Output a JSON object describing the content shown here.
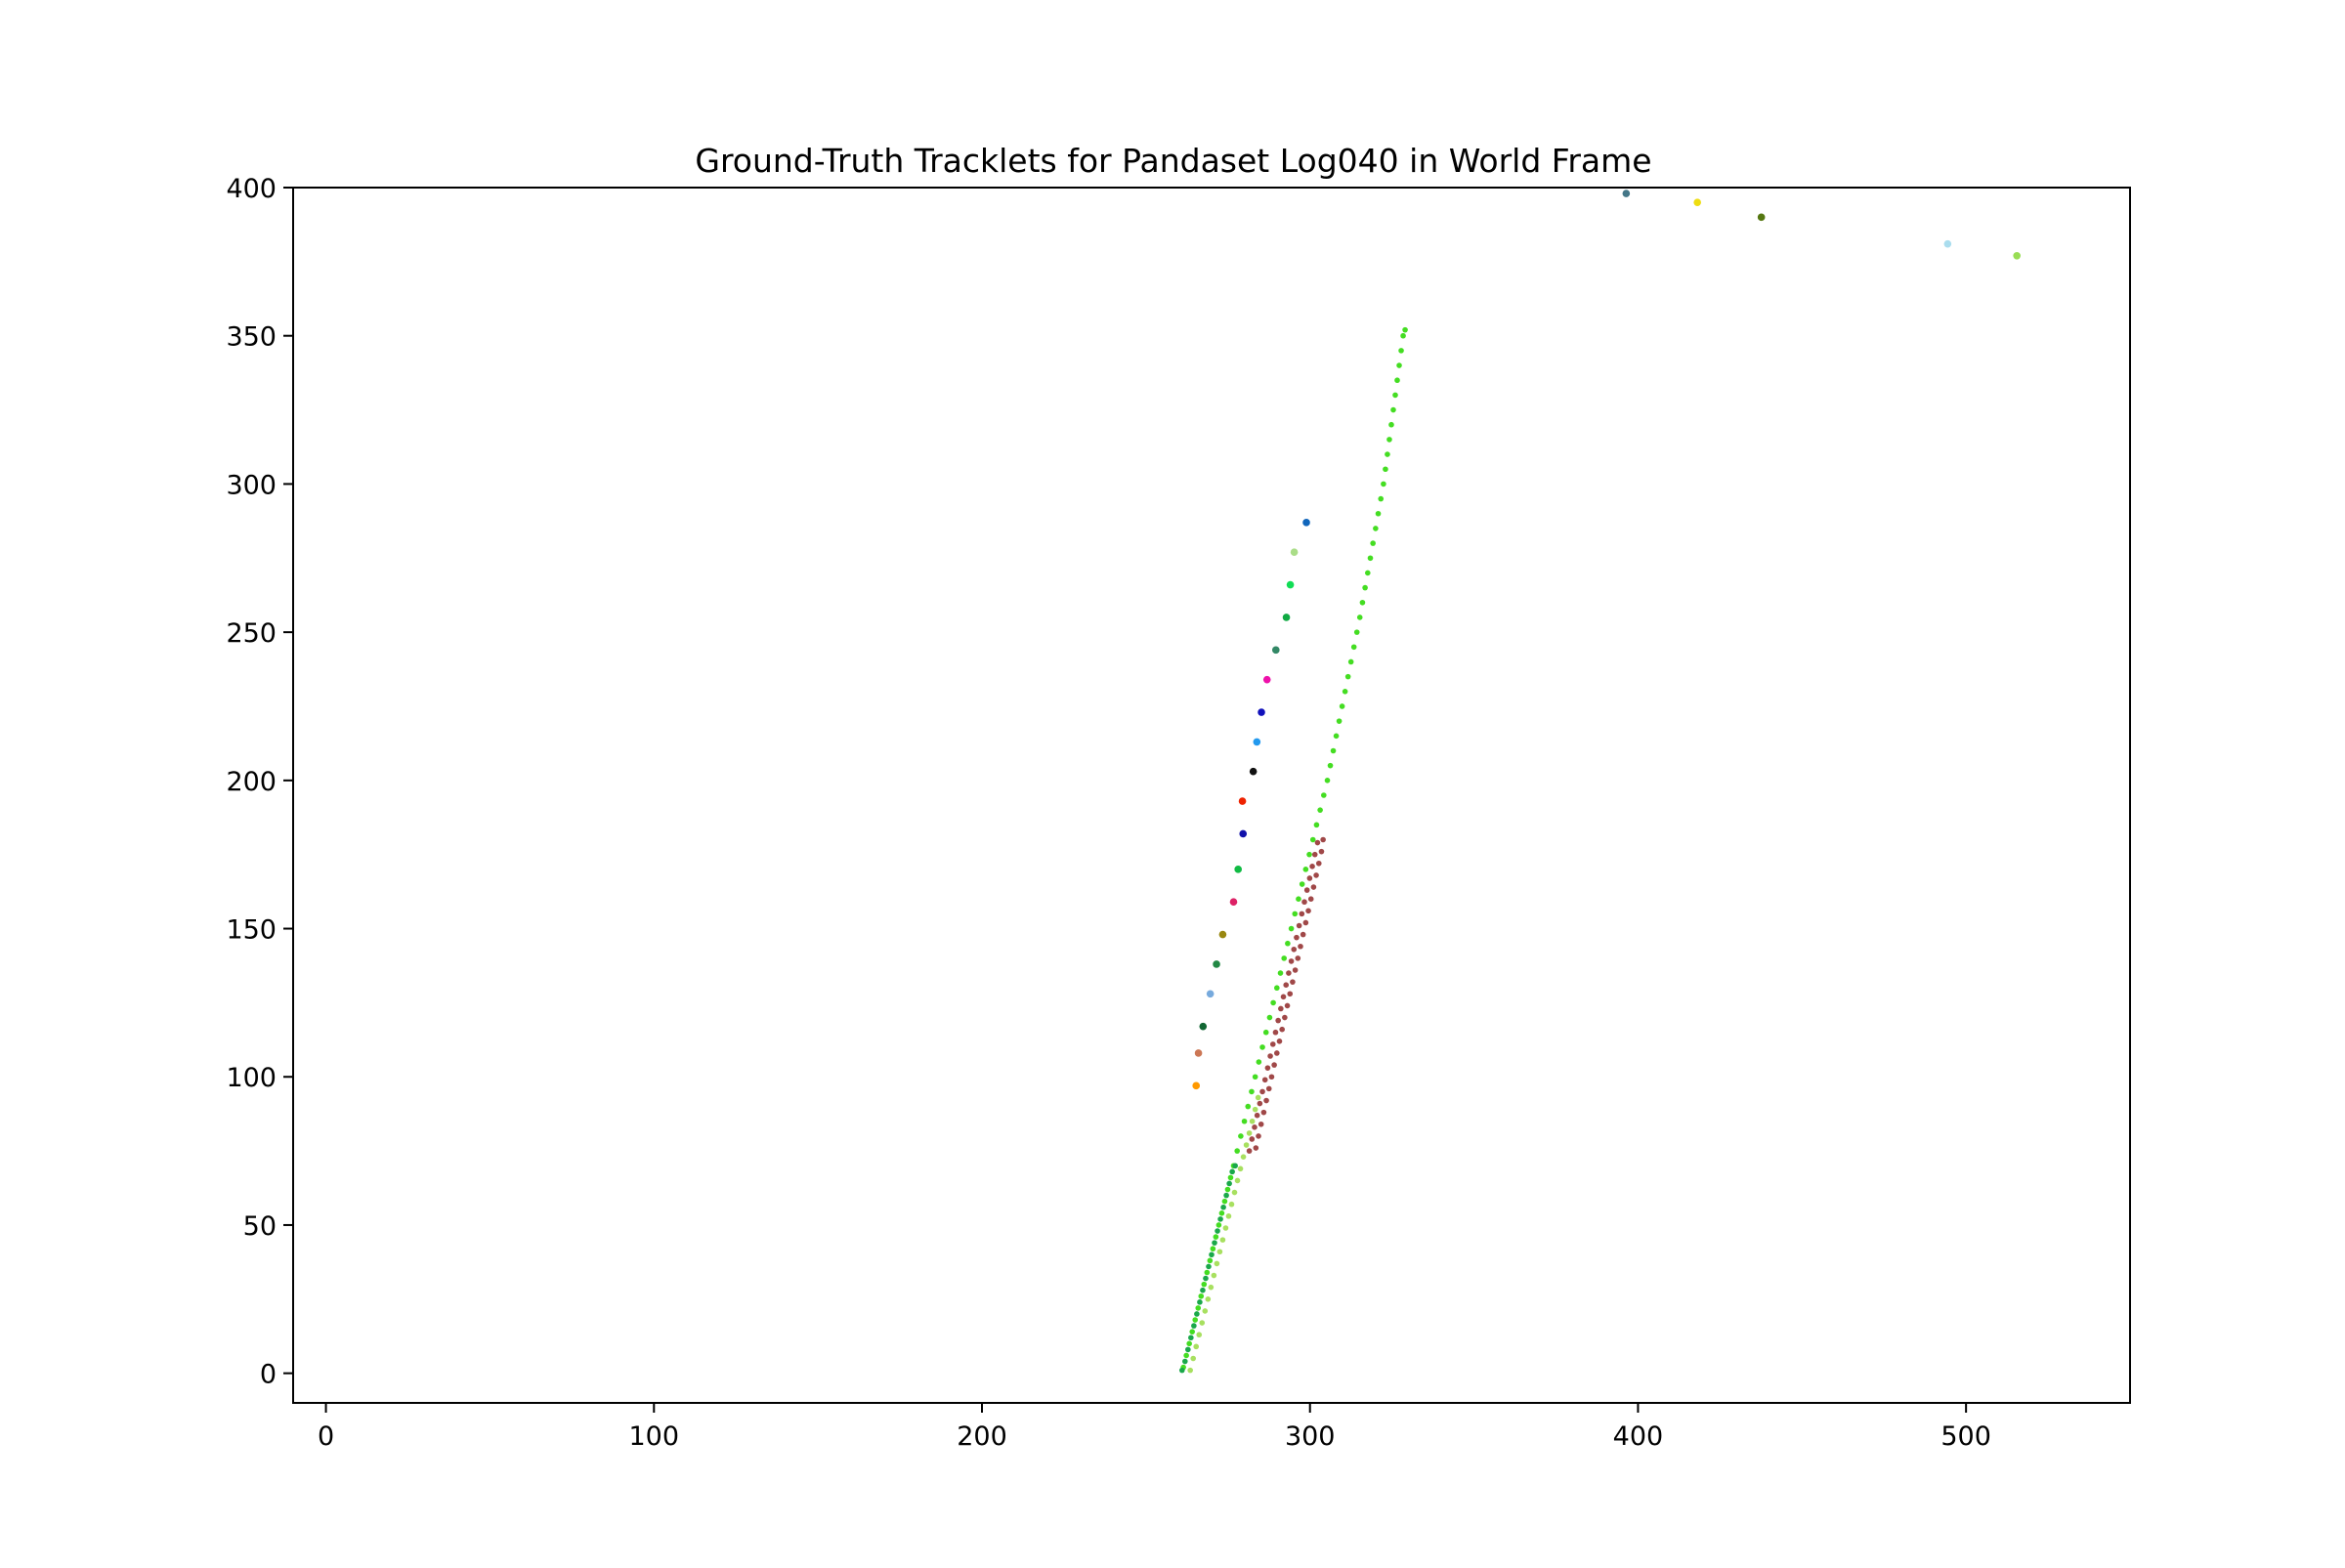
{
  "chart_data": {
    "type": "scatter",
    "title": "Ground-Truth Tracklets for Pandaset Log040 in World Frame",
    "xlabel": "",
    "ylabel": "",
    "xlim": [
      -10,
      550
    ],
    "ylim": [
      -10,
      400
    ],
    "xticks": [
      0,
      100,
      200,
      300,
      400,
      500
    ],
    "yticks": [
      0,
      50,
      100,
      150,
      200,
      250,
      300,
      350,
      400
    ],
    "grid": false,
    "legend": "none",
    "series": [
      {
        "color": "#44dd22",
        "marker_radius": 2.8,
        "points": [
          [
            261.4,
            2
          ],
          [
            262.3,
            6
          ],
          [
            263.2,
            10
          ],
          [
            264.1,
            14
          ],
          [
            265.0,
            18
          ],
          [
            265.9,
            22
          ],
          [
            266.8,
            26
          ],
          [
            267.7,
            30
          ],
          [
            268.6,
            34
          ],
          [
            269.5,
            38
          ],
          [
            270.4,
            42
          ],
          [
            271.3,
            46
          ],
          [
            272.2,
            50
          ],
          [
            273.1,
            54
          ],
          [
            274.0,
            58
          ],
          [
            274.9,
            62
          ],
          [
            275.8,
            66
          ],
          [
            276.7,
            70
          ],
          [
            277.8,
            75
          ],
          [
            278.9,
            80
          ],
          [
            280.0,
            85
          ],
          [
            281.1,
            90
          ],
          [
            282.2,
            95
          ],
          [
            283.3,
            100
          ],
          [
            284.4,
            105
          ],
          [
            285.5,
            110
          ],
          [
            286.6,
            115
          ],
          [
            287.7,
            120
          ],
          [
            288.8,
            125
          ],
          [
            289.9,
            130
          ],
          [
            291.0,
            135
          ],
          [
            292.1,
            140
          ],
          [
            293.2,
            145
          ],
          [
            294.3,
            150
          ],
          [
            295.4,
            155
          ],
          [
            296.5,
            160
          ],
          [
            297.6,
            165
          ],
          [
            298.7,
            170
          ],
          [
            299.8,
            175
          ],
          [
            300.9,
            180
          ],
          [
            302.0,
            185
          ],
          [
            303.1,
            190
          ],
          [
            304.2,
            195
          ],
          [
            305.3,
            200
          ],
          [
            306.2,
            205
          ],
          [
            307.1,
            210
          ],
          [
            308.0,
            215
          ],
          [
            308.9,
            220
          ],
          [
            309.8,
            225
          ],
          [
            310.7,
            230
          ],
          [
            311.6,
            235
          ],
          [
            312.5,
            240
          ],
          [
            313.4,
            245
          ],
          [
            314.3,
            250
          ],
          [
            315.2,
            255
          ],
          [
            316.0,
            260
          ],
          [
            316.8,
            265
          ],
          [
            317.6,
            270
          ],
          [
            318.4,
            275
          ],
          [
            319.2,
            280
          ],
          [
            320.0,
            285
          ],
          [
            320.8,
            290
          ],
          [
            321.6,
            295
          ],
          [
            322.4,
            300
          ],
          [
            323.0,
            305
          ],
          [
            323.6,
            310
          ],
          [
            324.2,
            315
          ],
          [
            324.8,
            320
          ],
          [
            325.4,
            325
          ],
          [
            326.0,
            330
          ],
          [
            326.6,
            335
          ],
          [
            327.2,
            340
          ],
          [
            327.8,
            345
          ],
          [
            328.4,
            350
          ],
          [
            329.0,
            352
          ]
        ]
      },
      {
        "color": "#1aa84a",
        "marker_radius": 2.8,
        "points": [
          [
            261.0,
            1
          ],
          [
            261.9,
            4
          ],
          [
            262.8,
            8
          ],
          [
            263.7,
            12
          ],
          [
            264.6,
            16
          ],
          [
            265.5,
            20
          ],
          [
            266.4,
            24
          ],
          [
            267.3,
            28
          ],
          [
            268.2,
            32
          ],
          [
            269.1,
            36
          ],
          [
            270.0,
            40
          ],
          [
            270.9,
            44
          ],
          [
            271.8,
            48
          ],
          [
            272.7,
            52
          ],
          [
            273.6,
            56
          ],
          [
            274.5,
            60
          ],
          [
            275.4,
            64
          ],
          [
            276.3,
            68
          ],
          [
            277.2,
            70
          ]
        ]
      },
      {
        "color": "#a8e060",
        "marker_radius": 2.8,
        "points": [
          [
            263.5,
            1
          ],
          [
            264.4,
            5
          ],
          [
            265.3,
            9
          ],
          [
            266.2,
            13
          ],
          [
            267.1,
            17
          ],
          [
            268.0,
            21
          ],
          [
            268.9,
            25
          ],
          [
            269.8,
            29
          ],
          [
            270.7,
            33
          ],
          [
            271.6,
            37
          ],
          [
            272.5,
            41
          ],
          [
            273.4,
            45
          ],
          [
            274.3,
            49
          ],
          [
            275.2,
            53
          ],
          [
            276.1,
            57
          ],
          [
            277.0,
            61
          ],
          [
            277.9,
            65
          ],
          [
            278.8,
            69
          ],
          [
            279.7,
            73
          ],
          [
            280.6,
            77
          ],
          [
            281.5,
            81
          ],
          [
            282.4,
            85
          ],
          [
            283.3,
            89
          ],
          [
            284.2,
            93
          ]
        ]
      },
      {
        "color": "#a04848",
        "marker_radius": 2.8,
        "points": [
          [
            281.5,
            75
          ],
          [
            282.3,
            79
          ],
          [
            283.1,
            83
          ],
          [
            283.9,
            87
          ],
          [
            284.7,
            91
          ],
          [
            285.5,
            95
          ],
          [
            286.3,
            99
          ],
          [
            287.1,
            103
          ],
          [
            287.9,
            107
          ],
          [
            288.7,
            111
          ],
          [
            289.5,
            115
          ],
          [
            290.3,
            119
          ],
          [
            291.1,
            123
          ],
          [
            291.9,
            127
          ],
          [
            292.7,
            131
          ],
          [
            293.5,
            135
          ],
          [
            294.3,
            139
          ],
          [
            295.1,
            143
          ],
          [
            295.9,
            147
          ],
          [
            296.7,
            151
          ],
          [
            297.5,
            155
          ],
          [
            298.3,
            159
          ],
          [
            299.1,
            163
          ],
          [
            299.9,
            167
          ],
          [
            300.7,
            171
          ],
          [
            301.5,
            175
          ],
          [
            302.3,
            179
          ],
          [
            283.5,
            76
          ],
          [
            284.3,
            80
          ],
          [
            285.1,
            84
          ],
          [
            285.9,
            88
          ],
          [
            286.7,
            92
          ],
          [
            287.5,
            96
          ],
          [
            288.3,
            100
          ],
          [
            289.1,
            104
          ],
          [
            289.9,
            108
          ],
          [
            290.7,
            112
          ],
          [
            291.5,
            116
          ],
          [
            292.3,
            120
          ],
          [
            293.1,
            124
          ],
          [
            293.9,
            128
          ],
          [
            294.7,
            132
          ],
          [
            295.5,
            136
          ],
          [
            296.3,
            140
          ],
          [
            297.1,
            144
          ],
          [
            297.9,
            148
          ],
          [
            298.7,
            152
          ],
          [
            299.5,
            156
          ],
          [
            300.3,
            160
          ],
          [
            301.1,
            164
          ],
          [
            301.9,
            168
          ],
          [
            302.7,
            172
          ],
          [
            303.5,
            176
          ],
          [
            304.0,
            180
          ]
        ]
      },
      {
        "color": "#ff9900",
        "marker_radius": 3.8,
        "points": [
          [
            265.3,
            97
          ]
        ]
      },
      {
        "color": "#cc7755",
        "marker_radius": 3.8,
        "points": [
          [
            266.0,
            108
          ]
        ]
      },
      {
        "color": "#116633",
        "marker_radius": 3.8,
        "points": [
          [
            267.4,
            117
          ]
        ]
      },
      {
        "color": "#77aadd",
        "marker_radius": 3.8,
        "points": [
          [
            269.6,
            128
          ]
        ]
      },
      {
        "color": "#228844",
        "marker_radius": 3.8,
        "points": [
          [
            271.5,
            138
          ]
        ]
      },
      {
        "color": "#998811",
        "marker_radius": 3.8,
        "points": [
          [
            273.4,
            148
          ]
        ]
      },
      {
        "color": "#dd2266",
        "marker_radius": 3.8,
        "points": [
          [
            276.7,
            159
          ]
        ]
      },
      {
        "color": "#11bb44",
        "marker_radius": 3.8,
        "points": [
          [
            278.1,
            170
          ]
        ]
      },
      {
        "color": "#1111aa",
        "marker_radius": 3.8,
        "points": [
          [
            279.6,
            182
          ]
        ]
      },
      {
        "color": "#ee2200",
        "marker_radius": 3.8,
        "points": [
          [
            279.4,
            193
          ]
        ]
      },
      {
        "color": "#111111",
        "marker_radius": 3.8,
        "points": [
          [
            282.7,
            203
          ]
        ]
      },
      {
        "color": "#2299ee",
        "marker_radius": 3.8,
        "points": [
          [
            283.8,
            213
          ]
        ]
      },
      {
        "color": "#1111bb",
        "marker_radius": 3.8,
        "points": [
          [
            285.2,
            223
          ]
        ]
      },
      {
        "color": "#ee11aa",
        "marker_radius": 3.8,
        "points": [
          [
            286.9,
            234
          ]
        ]
      },
      {
        "color": "#338866",
        "marker_radius": 3.8,
        "points": [
          [
            289.6,
            244
          ]
        ]
      },
      {
        "color": "#11aa44",
        "marker_radius": 3.8,
        "points": [
          [
            292.8,
            255
          ]
        ]
      },
      {
        "color": "#11dd55",
        "marker_radius": 3.8,
        "points": [
          [
            294.0,
            266
          ]
        ]
      },
      {
        "color": "#aadd88",
        "marker_radius": 3.8,
        "points": [
          [
            295.2,
            277
          ]
        ]
      },
      {
        "color": "#1166bb",
        "marker_radius": 3.8,
        "points": [
          [
            298.9,
            287
          ]
        ]
      },
      {
        "color": "#447788",
        "marker_radius": 3.8,
        "points": [
          [
            396.4,
            398
          ]
        ]
      },
      {
        "color": "#eedd11",
        "marker_radius": 3.8,
        "points": [
          [
            418.1,
            395
          ]
        ]
      },
      {
        "color": "#557711",
        "marker_radius": 3.8,
        "points": [
          [
            437.6,
            390
          ]
        ]
      },
      {
        "color": "#aaddee",
        "marker_radius": 3.8,
        "points": [
          [
            494.4,
            381
          ]
        ]
      },
      {
        "color": "#99dd55",
        "marker_radius": 3.8,
        "points": [
          [
            515.5,
            377
          ]
        ]
      }
    ]
  }
}
